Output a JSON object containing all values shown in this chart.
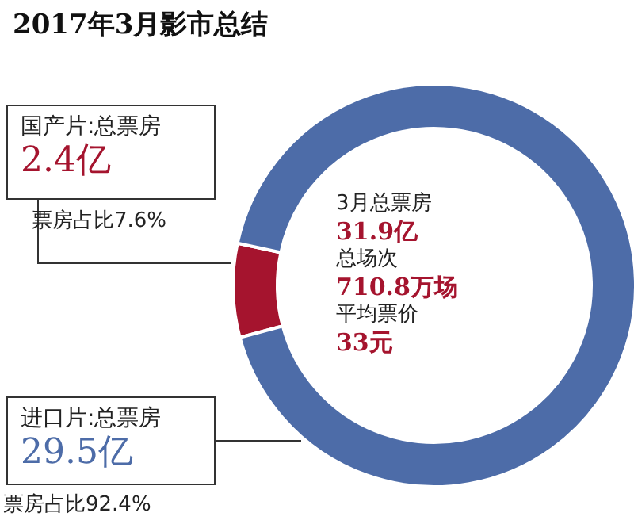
{
  "chart_data": {
    "type": "donut",
    "title": "2017年3月影市总结",
    "categories": [
      "国产片:总票房",
      "进口片:总票房"
    ],
    "values": [
      2.4,
      29.5
    ],
    "value_labels": [
      "2.4亿",
      "29.5亿"
    ],
    "colors": [
      "#a5142e",
      "#4d6ca8"
    ],
    "annotations": [
      "票房占比7.6%",
      "票房占比92.4%",
      "3月总票房",
      "31.9亿",
      "总场次",
      "710.8万场",
      "平均票价",
      "33元"
    ],
    "legend": false
  }
}
